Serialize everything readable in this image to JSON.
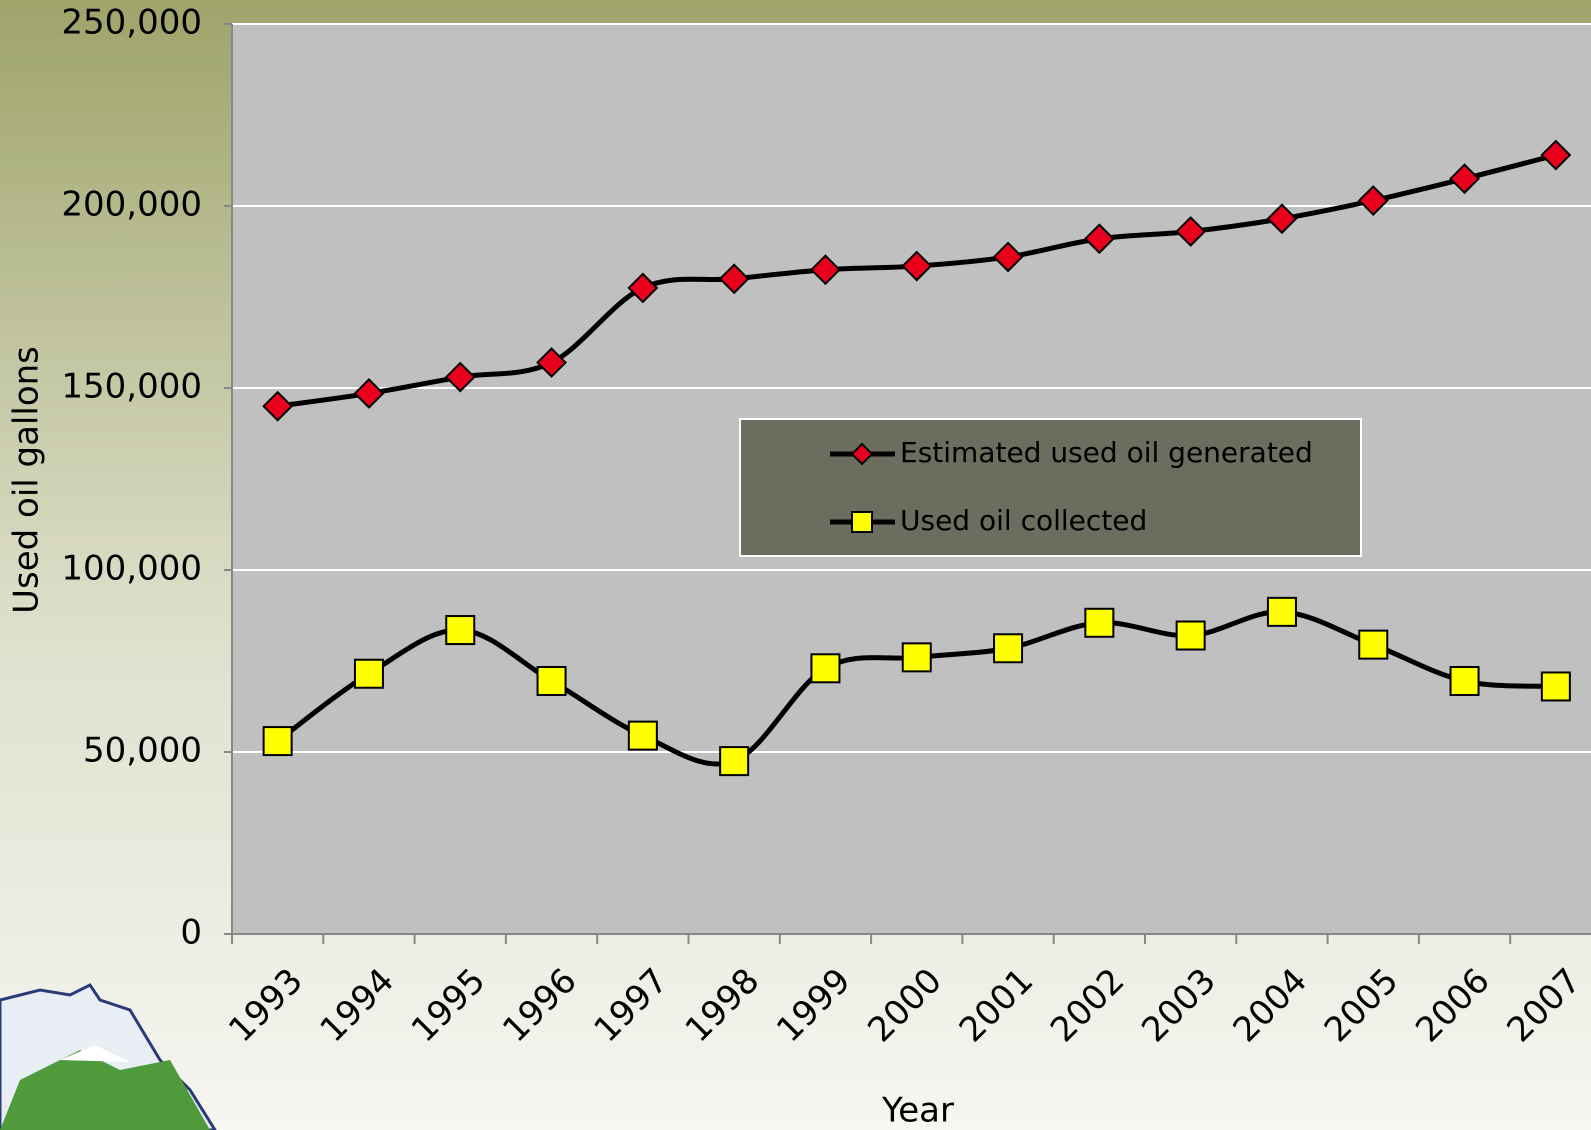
{
  "chart_data": {
    "type": "line",
    "x_label": "Year",
    "y_label": "Used oil gallons",
    "categories": [
      "1993",
      "1994",
      "1995",
      "1996",
      "1997",
      "1998",
      "1999",
      "2000",
      "2001",
      "2002",
      "2003",
      "2004",
      "2005",
      "2006",
      "2007"
    ],
    "series": [
      {
        "name": "Estimated used oil generated",
        "color": "#e8001c",
        "marker": "diamond",
        "values": [
          145000,
          148500,
          153000,
          157000,
          177500,
          180000,
          182500,
          183500,
          186000,
          191000,
          193000,
          196500,
          201500,
          207500,
          214000
        ]
      },
      {
        "name": "Used oil collected",
        "color": "#ffff00",
        "marker": "square",
        "values": [
          53000,
          71500,
          83500,
          69500,
          54500,
          47500,
          73000,
          76000,
          78500,
          85500,
          82000,
          88500,
          79500,
          69500,
          68000
        ]
      }
    ],
    "ylim": [
      0,
      250000
    ],
    "yticks": [
      0,
      {
        "value": 50000,
        "label": "50,000"
      },
      {
        "value": 100000,
        "label": "100,000"
      },
      {
        "value": 150000,
        "label": "150,000"
      },
      {
        "value": 200000,
        "label": "200,000"
      },
      {
        "value": 250000,
        "label": "250,000"
      }
    ],
    "grid": true
  }
}
